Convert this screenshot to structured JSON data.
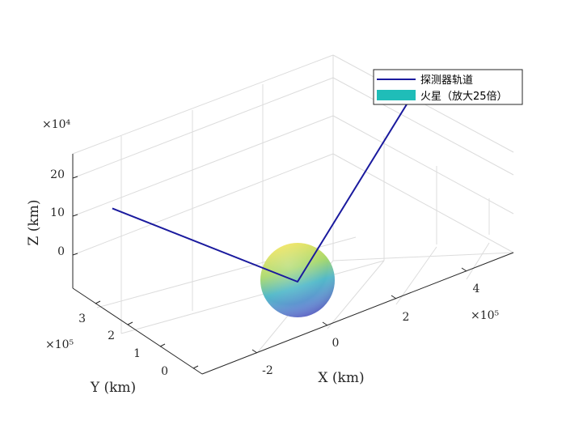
{
  "chart_data": {
    "type": "line",
    "title": "",
    "xlabel": "X (km)",
    "ylabel": "Y (km)",
    "zlabel": "Z (km)",
    "x_exponent": "×10⁵",
    "y_exponent": "×10⁵",
    "z_exponent": "×10⁴",
    "x_ticks": [
      "-2",
      "0",
      "2",
      "4"
    ],
    "y_ticks": [
      "0",
      "1",
      "2",
      "3"
    ],
    "z_ticks": [
      "0",
      "10",
      "20"
    ],
    "grid": true,
    "legend_position": "top-right",
    "series": [
      {
        "name": "探测器轨道",
        "color": "#1a1a9e",
        "points": [
          {
            "x": -300000,
            "y": 380000,
            "z": 270000
          },
          {
            "x": 0,
            "y": 0,
            "z": 0
          },
          {
            "x": 550000,
            "y": 500000,
            "z": 250000
          }
        ]
      },
      {
        "name": "火星（放大25倍）",
        "color": "#1fbdb8",
        "kind": "sphere",
        "center": {
          "x": 0,
          "y": 0,
          "z": 0
        }
      }
    ]
  }
}
